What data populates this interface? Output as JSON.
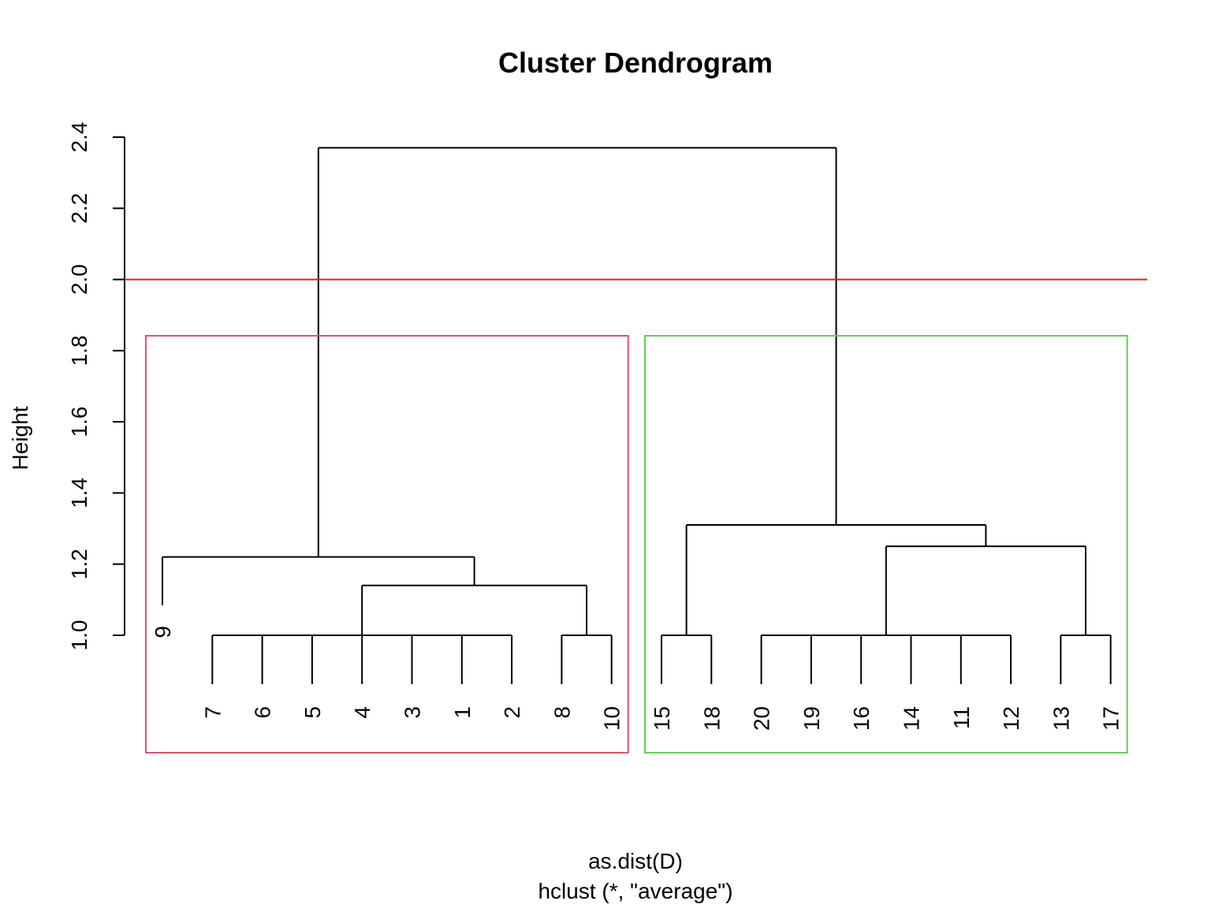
{
  "chart_data": {
    "type": "dendrogram",
    "title": "Cluster Dendrogram",
    "xlabel": "as.dist(D)",
    "sub": "hclust (*, \"average\")",
    "ylabel": "Height",
    "ylim": [
      1.0,
      2.4
    ],
    "yticks": [
      "1.0",
      "1.2",
      "1.4",
      "1.6",
      "1.8",
      "2.0",
      "2.2",
      "2.4"
    ],
    "leaf_order": [
      "9",
      "7",
      "6",
      "5",
      "4",
      "3",
      "1",
      "2",
      "8",
      "10",
      "15",
      "18",
      "20",
      "19",
      "16",
      "14",
      "11",
      "12",
      "13",
      "17"
    ],
    "merges": [
      {
        "members": [
          "7",
          "6",
          "5",
          "4",
          "3",
          "1",
          "2"
        ],
        "height": 1.0
      },
      {
        "members": [
          "8",
          "10"
        ],
        "height": 1.0
      },
      {
        "members": [
          "7",
          "6",
          "5",
          "4",
          "3",
          "1",
          "2",
          "8",
          "10"
        ],
        "height": 1.14
      },
      {
        "members": [
          "9",
          "7",
          "6",
          "5",
          "4",
          "3",
          "1",
          "2",
          "8",
          "10"
        ],
        "height": 1.22
      },
      {
        "members": [
          "15",
          "18"
        ],
        "height": 1.0
      },
      {
        "members": [
          "20",
          "19",
          "16",
          "14",
          "11",
          "12"
        ],
        "height": 1.0
      },
      {
        "members": [
          "13",
          "17"
        ],
        "height": 1.0
      },
      {
        "members": [
          "20",
          "19",
          "16",
          "14",
          "11",
          "12",
          "13",
          "17"
        ],
        "height": 1.25
      },
      {
        "members": [
          "15",
          "18",
          "20",
          "19",
          "16",
          "14",
          "11",
          "12",
          "13",
          "17"
        ],
        "height": 1.31
      },
      {
        "members": [
          "all"
        ],
        "height": 2.37
      }
    ],
    "cut_height": 2.0,
    "cut_color": "#DF1F1F",
    "clusters": [
      {
        "members": [
          "9",
          "7",
          "6",
          "5",
          "4",
          "3",
          "1",
          "2",
          "8",
          "10"
        ],
        "color": "#DF536B"
      },
      {
        "members": [
          "15",
          "18",
          "20",
          "19",
          "16",
          "14",
          "11",
          "12",
          "13",
          "17"
        ],
        "color": "#61D04F"
      }
    ]
  }
}
